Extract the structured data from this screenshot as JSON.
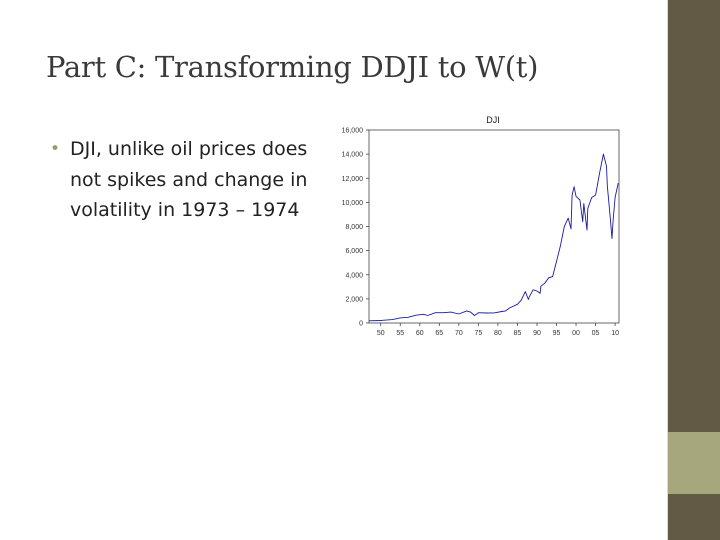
{
  "slide": {
    "title": "Part C: Transforming DDJI to W(t)",
    "bullets": [
      "DJI, unlike oil prices does not spikes and change in volatility in 1973 – 1974"
    ]
  },
  "colors": {
    "sidebar": "#625a44",
    "sidebar_accent": "#a7a77e",
    "series": "#1a1aa0"
  },
  "chart_data": {
    "type": "line",
    "title": "DJI",
    "xlabel": "",
    "ylabel": "",
    "xlim": [
      1947,
      2011
    ],
    "ylim": [
      0,
      16000
    ],
    "x_ticks": [
      50,
      55,
      60,
      65,
      70,
      75,
      80,
      85,
      90,
      95,
      0,
      5,
      10
    ],
    "x_tick_years": [
      1950,
      1955,
      1960,
      1965,
      1970,
      1975,
      1980,
      1985,
      1990,
      1995,
      2000,
      2005,
      2010
    ],
    "x_tick_labels": [
      "50",
      "55",
      "60",
      "65",
      "70",
      "75",
      "80",
      "85",
      "90",
      "95",
      "00",
      "05",
      "10"
    ],
    "y_ticks": [
      0,
      2000,
      4000,
      6000,
      8000,
      10000,
      12000,
      14000,
      16000
    ],
    "y_tick_labels": [
      "0",
      "2,000",
      "4,000",
      "6,000",
      "8,000",
      "10,000",
      "12,000",
      "14,000",
      "16,000"
    ],
    "grid": false,
    "series": [
      {
        "x": [
          1947,
          1950,
          1953,
          1955,
          1957,
          1959,
          1961,
          1962,
          1964,
          1966,
          1968,
          1970,
          1972,
          1973,
          1974,
          1975,
          1977,
          1979,
          1981,
          1982,
          1983,
          1985,
          1986,
          1987,
          1987.8,
          1988,
          1989,
          1990,
          1990.8,
          1991,
          1992,
          1993,
          1994,
          1995,
          1996,
          1997,
          1998,
          1998.7,
          1999,
          1999.5,
          2000,
          2001,
          2001.7,
          2002,
          2002.8,
          2003,
          2004,
          2005,
          2006,
          2007,
          2007.8,
          2008,
          2008.8,
          2009.2,
          2009.5,
          2010,
          2010.8
        ],
        "y": [
          180,
          210,
          280,
          420,
          470,
          650,
          720,
          620,
          850,
          850,
          900,
          750,
          1000,
          900,
          620,
          850,
          830,
          840,
          950,
          1000,
          1250,
          1550,
          1900,
          2600,
          1950,
          2150,
          2750,
          2650,
          2450,
          3050,
          3300,
          3750,
          3850,
          5100,
          6400,
          8000,
          8700,
          7800,
          10600,
          11300,
          10500,
          10200,
          8400,
          9900,
          7700,
          9500,
          10400,
          10600,
          12400,
          14000,
          13000,
          11400,
          8600,
          7000,
          8500,
          10400,
          11600
        ]
      }
    ]
  }
}
